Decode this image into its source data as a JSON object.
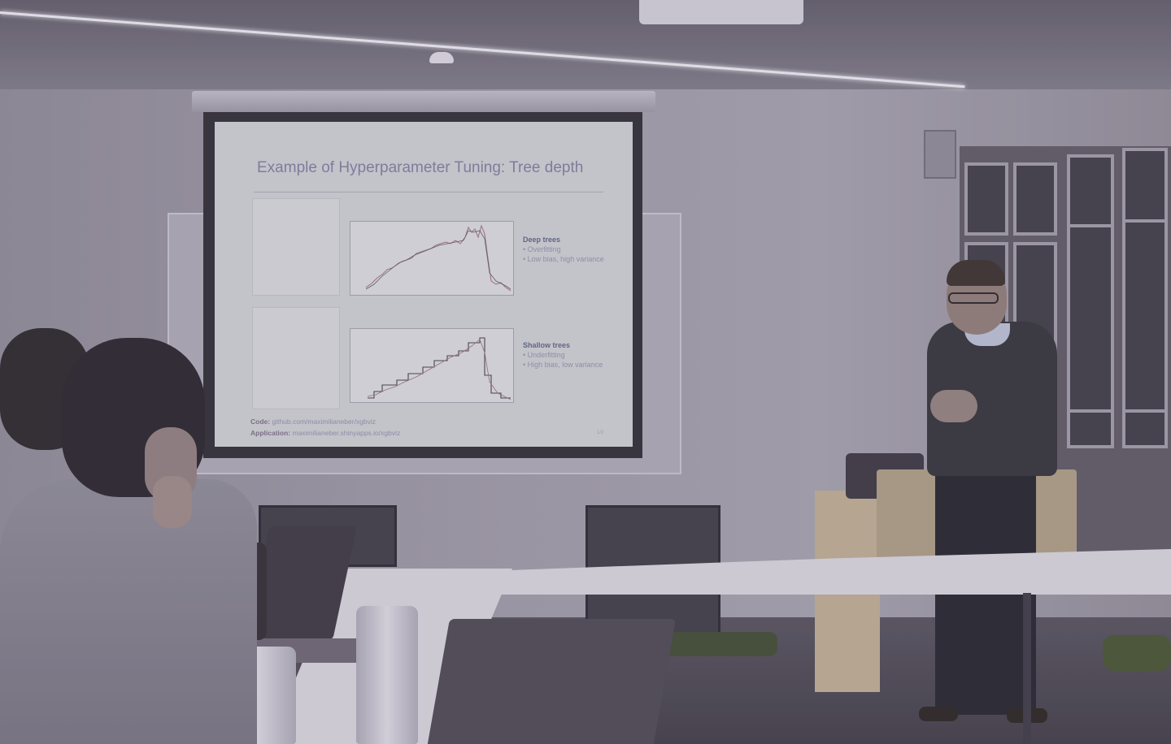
{
  "scene": {
    "description_alt": "Presenter giving a talk in a seminar room with a projected slide"
  },
  "slide": {
    "title": "Example of Hyperparameter Tuning: Tree depth",
    "deep": {
      "heading": "Deep trees",
      "items": [
        "Overfitting",
        "Low bias, high variance"
      ]
    },
    "shallow": {
      "heading": "Shallow trees",
      "items": [
        "Underfitting",
        "High bias, low variance"
      ]
    },
    "code_label": "Code:",
    "code_value": "github.com/maximilianeber/xgbviz",
    "app_label": "Application:",
    "app_value": "maximilianeber.shinyapps.io/xgbviz",
    "page_number": "1/2"
  },
  "colors": {
    "slide_bg": "#c9cace",
    "title_color": "#7a7d9a",
    "plot_line_red": "#9c6a78",
    "plot_line_dark": "#40404a"
  }
}
